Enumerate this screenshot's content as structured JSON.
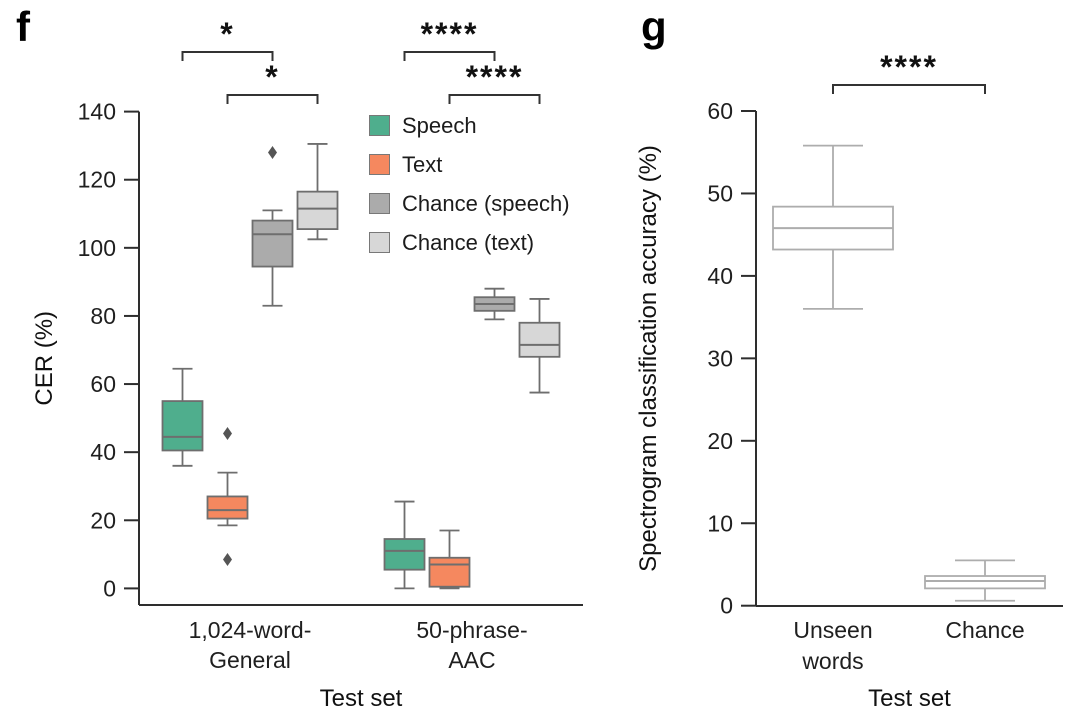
{
  "figure": {
    "panels": [
      {
        "label": "f"
      },
      {
        "label": "g"
      }
    ]
  },
  "chart_data": [
    {
      "type": "box",
      "panel_label": "f",
      "title": "",
      "xlabel": "Test set",
      "ylabel": "CER (%)",
      "ylim": [
        0,
        140
      ],
      "yticks": [
        0,
        20,
        40,
        60,
        80,
        100,
        120,
        140
      ],
      "grid": false,
      "categories": [
        [
          "1,024-word-",
          "General"
        ],
        [
          "50-phrase-",
          "AAC"
        ]
      ],
      "legend_position": "upper center inside",
      "outlier_color": "#555555",
      "series": [
        {
          "name": "Speech",
          "fill": "#4FAE8D",
          "stroke": "#6E6E6E",
          "groups": [
            {
              "whislo": 36,
              "q1": 40.5,
              "med": 44.5,
              "q3": 55,
              "whishi": 64.5,
              "fliers": []
            },
            {
              "whislo": 0,
              "q1": 5.5,
              "med": 11,
              "q3": 14.5,
              "whishi": 25.5,
              "fliers": []
            }
          ]
        },
        {
          "name": "Text",
          "fill": "#F5885F",
          "stroke": "#6E6E6E",
          "groups": [
            {
              "whislo": 18.5,
              "q1": 20.5,
              "med": 23,
              "q3": 27,
              "whishi": 34,
              "fliers": [
                45.5,
                8.5
              ]
            },
            {
              "whislo": 0,
              "q1": 0.5,
              "med": 7,
              "q3": 9,
              "whishi": 17,
              "fliers": []
            }
          ]
        },
        {
          "name": "Chance (speech)",
          "fill": "#ABABAB",
          "stroke": "#6E6E6E",
          "groups": [
            {
              "whislo": 83,
              "q1": 94.5,
              "med": 104,
              "q3": 108,
              "whishi": 111,
              "fliers": [
                128
              ]
            },
            {
              "whislo": 79,
              "q1": 81.5,
              "med": 83.5,
              "q3": 85.5,
              "whishi": 88,
              "fliers": []
            }
          ]
        },
        {
          "name": "Chance (text)",
          "fill": "#D7D7D7",
          "stroke": "#6E6E6E",
          "groups": [
            {
              "whislo": 102.5,
              "q1": 105.5,
              "med": 111.5,
              "q3": 116.5,
              "whishi": 130.5,
              "fliers": []
            },
            {
              "whislo": 57.5,
              "q1": 68,
              "med": 71.5,
              "q3": 78,
              "whishi": 85,
              "fliers": []
            }
          ]
        }
      ],
      "significance": [
        {
          "from": {
            "group": 0,
            "series": 0
          },
          "to": {
            "group": 0,
            "series": 2
          },
          "label": "*",
          "level": 0
        },
        {
          "from": {
            "group": 0,
            "series": 1
          },
          "to": {
            "group": 0,
            "series": 3
          },
          "label": "*",
          "level": 1
        },
        {
          "from": {
            "group": 1,
            "series": 0
          },
          "to": {
            "group": 1,
            "series": 2
          },
          "label": "****",
          "level": 0
        },
        {
          "from": {
            "group": 1,
            "series": 1
          },
          "to": {
            "group": 1,
            "series": 3
          },
          "label": "****",
          "level": 1
        }
      ]
    },
    {
      "type": "box",
      "panel_label": "g",
      "title": "",
      "xlabel": "Test set",
      "ylabel": "Spectrogram classification accuracy (%)",
      "ylim": [
        0,
        60
      ],
      "yticks": [
        0,
        10,
        20,
        30,
        40,
        50,
        60
      ],
      "grid": false,
      "categories": [
        [
          "Unseen",
          "words"
        ],
        [
          "Chance"
        ]
      ],
      "outlier_color": "#555555",
      "series": [
        {
          "name": "",
          "fill": "#FFFFFF",
          "stroke": "#ADADAD",
          "groups": [
            {
              "whislo": 36,
              "q1": 43.2,
              "med": 45.8,
              "q3": 48.4,
              "whishi": 55.8,
              "fliers": []
            },
            {
              "whislo": 0.6,
              "q1": 2.1,
              "med": 3,
              "q3": 3.6,
              "whishi": 5.5,
              "fliers": []
            }
          ]
        }
      ],
      "significance": [
        {
          "from": {
            "group": 0,
            "series": 0
          },
          "to": {
            "group": 1,
            "series": 0
          },
          "label": "****",
          "level": 0
        }
      ]
    }
  ]
}
